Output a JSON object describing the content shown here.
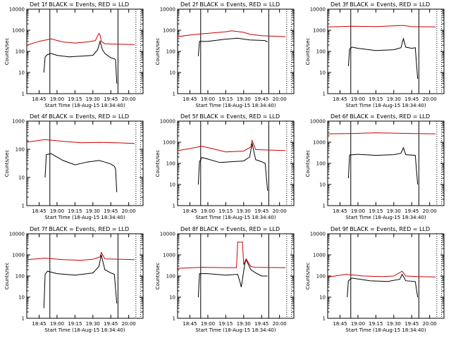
{
  "figure": {
    "background": "#ffffff"
  },
  "chart_data": [
    {
      "type": "line",
      "id": "1f",
      "title": "Det 1f BLACK = Events, RED = LLD",
      "xlabel": "Start Time (18-Aug-15 18:34:40)",
      "ylabel": "Counts/sec",
      "ylog": true,
      "ylim": [
        1,
        10000
      ],
      "yticks": [
        "1",
        "10",
        "100",
        "1000",
        "10000"
      ],
      "xticks": [
        "18:45",
        "19:00",
        "19:15",
        "19:30",
        "19:45",
        "20:00"
      ],
      "vlines_solid": [
        "18:54",
        "19:51"
      ],
      "vlines_dotted": [
        "20:06",
        "20:10"
      ],
      "series": [
        {
          "name": "Events",
          "color": "#000000",
          "x": [
            "18:49",
            "18:50",
            "18:52",
            "18:55",
            "19:00",
            "19:10",
            "19:20",
            "19:30",
            "19:34",
            "19:36",
            "19:38",
            "19:40",
            "19:45",
            "19:48",
            "19:49",
            "19:50"
          ],
          "y": [
            10,
            55,
            70,
            80,
            65,
            55,
            60,
            65,
            120,
            300,
            120,
            80,
            50,
            45,
            40,
            3
          ]
        },
        {
          "name": "LLD",
          "color": "#cc0000",
          "x": [
            "18:35",
            "18:45",
            "18:55",
            "19:05",
            "19:15",
            "19:25",
            "19:32",
            "19:35",
            "19:36",
            "19:37",
            "19:40",
            "19:50",
            "20:05"
          ],
          "y": [
            200,
            300,
            390,
            280,
            250,
            280,
            320,
            700,
            600,
            300,
            230,
            220,
            210
          ]
        }
      ]
    },
    {
      "type": "line",
      "id": "2f",
      "title": "Det 2f BLACK = Events, RED = LLD",
      "xlabel": "Start Time (18-Aug-15 18:34:40)",
      "ylabel": "Counts/sec",
      "ylog": true,
      "ylim": [
        1,
        10000
      ],
      "yticks": [
        "1",
        "10",
        "100",
        "1000",
        "10000"
      ],
      "xticks": [
        "18:45",
        "19:00",
        "19:15",
        "19:30",
        "19:45",
        "20:00"
      ],
      "vlines_solid": [
        "18:54",
        "19:51"
      ],
      "vlines_dotted": [
        "20:06",
        "20:10"
      ],
      "series": [
        {
          "name": "Events",
          "color": "#000000",
          "x": [
            "18:52",
            "18:53",
            "19:00",
            "19:15",
            "19:25",
            "19:35",
            "19:45",
            "19:48",
            "19:50"
          ],
          "y": [
            60,
            300,
            300,
            380,
            420,
            350,
            330,
            320,
            280
          ]
        },
        {
          "name": "LLD",
          "color": "#cc0000",
          "x": [
            "18:35",
            "18:45",
            "18:55",
            "19:05",
            "19:15",
            "19:20",
            "19:30",
            "19:35",
            "19:45",
            "20:05"
          ],
          "y": [
            500,
            600,
            680,
            760,
            850,
            950,
            800,
            650,
            550,
            500
          ]
        }
      ]
    },
    {
      "type": "line",
      "id": "3f",
      "title": "Det 3f BLACK = Events, RED = LLD",
      "xlabel": "Start Time (18-Aug-15 18:34:40)",
      "ylabel": "Counts/sec",
      "ylog": true,
      "ylim": [
        1,
        10000
      ],
      "yticks": [
        "1",
        "10",
        "100",
        "1000",
        "10000"
      ],
      "xticks": [
        "18:45",
        "19:00",
        "19:15",
        "19:30",
        "19:45",
        "20:00"
      ],
      "vlines_solid": [
        "18:54",
        "19:51"
      ],
      "vlines_dotted": [
        "20:06",
        "20:10"
      ],
      "series": [
        {
          "name": "Events",
          "color": "#000000",
          "x": [
            "18:52",
            "18:53",
            "18:55",
            "19:00",
            "19:15",
            "19:30",
            "19:36",
            "19:38",
            "19:40",
            "19:45",
            "19:48",
            "19:50"
          ],
          "y": [
            20,
            130,
            160,
            140,
            110,
            120,
            150,
            400,
            160,
            140,
            150,
            5
          ]
        },
        {
          "name": "LLD",
          "color": "#cc0000",
          "x": [
            "18:35",
            "18:55",
            "19:15",
            "19:38",
            "19:45",
            "20:05"
          ],
          "y": [
            1450,
            1550,
            1500,
            1700,
            1500,
            1450
          ]
        }
      ]
    },
    {
      "type": "line",
      "id": "4f",
      "title": "Det 4f BLACK = Events, RED = LLD",
      "xlabel": "Start Time (18-Aug-15 18:34:40)",
      "ylabel": "Counts/sec",
      "ylog": true,
      "ylim": [
        1,
        1000
      ],
      "yticks": [
        "1",
        "10",
        "100",
        "1000"
      ],
      "xticks": [
        "18:45",
        "19:00",
        "19:15",
        "19:30",
        "19:45",
        "20:00"
      ],
      "vlines_solid": [
        "18:54"
      ],
      "vlines_dotted": [
        "20:06",
        "20:10"
      ],
      "series": [
        {
          "name": "Events",
          "color": "#000000",
          "x": [
            "18:50",
            "18:51",
            "18:55",
            "19:05",
            "19:15",
            "19:25",
            "19:35",
            "19:40",
            "19:45",
            "19:48",
            "19:49",
            "19:50"
          ],
          "y": [
            10,
            65,
            70,
            40,
            28,
            35,
            40,
            35,
            30,
            25,
            20,
            3
          ]
        },
        {
          "name": "LLD",
          "color": "#cc0000",
          "x": [
            "18:35",
            "18:50",
            "19:05",
            "19:20",
            "19:35",
            "19:50",
            "20:05"
          ],
          "y": [
            180,
            220,
            190,
            170,
            175,
            170,
            160
          ]
        }
      ]
    },
    {
      "type": "line",
      "id": "5f",
      "title": "Det 5f BLACK = Events, RED = LLD",
      "xlabel": "Start Time (18-Aug-15 18:34:40)",
      "ylabel": "Counts/sec",
      "ylog": true,
      "ylim": [
        1,
        10000
      ],
      "yticks": [
        "1",
        "10",
        "100",
        "1000",
        "10000"
      ],
      "xticks": [
        "18:45",
        "19:00",
        "19:15",
        "19:30",
        "19:45",
        "20:00"
      ],
      "vlines_solid": [
        "18:54",
        "19:51"
      ],
      "vlines_dotted": [
        "20:06",
        "20:10"
      ],
      "series": [
        {
          "name": "Events",
          "color": "#000000",
          "x": [
            "18:52",
            "18:53",
            "18:55",
            "19:00",
            "19:10",
            "19:20",
            "19:30",
            "19:35",
            "19:37",
            "19:40",
            "19:45",
            "19:48",
            "19:50"
          ],
          "y": [
            10,
            120,
            190,
            160,
            110,
            120,
            130,
            200,
            900,
            150,
            120,
            100,
            5
          ]
        },
        {
          "name": "LLD",
          "color": "#cc0000",
          "x": [
            "18:35",
            "18:45",
            "18:55",
            "19:05",
            "19:15",
            "19:30",
            "19:36",
            "19:37",
            "19:40",
            "20:05"
          ],
          "y": [
            400,
            500,
            650,
            480,
            350,
            380,
            600,
            1200,
            450,
            400
          ]
        }
      ]
    },
    {
      "type": "line",
      "id": "6f",
      "title": "Det 6f BLACK = Events, RED = LLD",
      "xlabel": "Start Time (18-Aug-15 18:34:40)",
      "ylabel": "Counts/sec",
      "ylog": true,
      "ylim": [
        1,
        10000
      ],
      "yticks": [
        "1",
        "10",
        "100",
        "1000",
        "10000"
      ],
      "xticks": [
        "18:45",
        "19:00",
        "19:15",
        "19:30",
        "19:45",
        "20:00"
      ],
      "vlines_solid": [
        "18:54",
        "19:51"
      ],
      "vlines_dotted": [
        "20:06",
        "20:10"
      ],
      "series": [
        {
          "name": "Events",
          "color": "#000000",
          "x": [
            "18:52",
            "18:53",
            "19:00",
            "19:15",
            "19:30",
            "19:36",
            "19:38",
            "19:40",
            "19:48",
            "19:50"
          ],
          "y": [
            20,
            250,
            270,
            240,
            260,
            300,
            550,
            260,
            240,
            10
          ]
        },
        {
          "name": "LLD",
          "color": "#cc0000",
          "x": [
            "18:35",
            "18:55",
            "19:15",
            "19:30",
            "19:45",
            "20:05"
          ],
          "y": [
            2500,
            2600,
            2800,
            2700,
            2600,
            2500
          ]
        }
      ]
    },
    {
      "type": "line",
      "id": "7f",
      "title": "Det 7f BLACK = Events, RED = LLD",
      "xlabel": "Start Time (18-Aug-15 18:34:40)",
      "ylabel": "Counts/sec",
      "ylog": true,
      "ylim": [
        1,
        10000
      ],
      "yticks": [
        "1",
        "10",
        "100",
        "1000",
        "10000"
      ],
      "xticks": [
        "18:45",
        "19:00",
        "19:15",
        "19:30",
        "19:45",
        "20:00"
      ],
      "vlines_solid": [
        "18:54",
        "19:51"
      ],
      "vlines_dotted": [
        "20:06",
        "20:10"
      ],
      "series": [
        {
          "name": "Events",
          "color": "#000000",
          "x": [
            "18:49",
            "18:50",
            "18:52",
            "19:00",
            "19:15",
            "19:30",
            "19:35",
            "19:37",
            "19:40",
            "19:45",
            "19:48",
            "19:50"
          ],
          "y": [
            3,
            120,
            170,
            130,
            110,
            140,
            280,
            1000,
            200,
            140,
            120,
            5
          ]
        },
        {
          "name": "LLD",
          "color": "#cc0000",
          "x": [
            "18:35",
            "18:50",
            "19:05",
            "19:20",
            "19:30",
            "19:36",
            "19:37",
            "19:40",
            "20:05"
          ],
          "y": [
            600,
            700,
            600,
            560,
            620,
            800,
            1300,
            650,
            600
          ]
        }
      ]
    },
    {
      "type": "line",
      "id": "8f",
      "title": "Det 8f BLACK = Events, RED = LLD",
      "xlabel": "Start Time (18-Aug-15 18:34:40)",
      "ylabel": "Counts/sec",
      "ylog": true,
      "ylim": [
        1,
        10000
      ],
      "yticks": [
        "1",
        "10",
        "100",
        "1000",
        "10000"
      ],
      "xticks": [
        "18:45",
        "19:00",
        "19:15",
        "19:30",
        "19:45",
        "20:00"
      ],
      "vlines_solid": [
        "18:54",
        "19:51"
      ],
      "vlines_dotted": [
        "20:06",
        "20:10"
      ],
      "series": [
        {
          "name": "Events",
          "color": "#000000",
          "x": [
            "18:52",
            "18:53",
            "19:00",
            "19:15",
            "19:25",
            "19:27",
            "19:28",
            "19:31",
            "19:32",
            "19:36",
            "19:40",
            "19:45",
            "19:48",
            "19:50"
          ],
          "y": [
            10,
            130,
            130,
            110,
            120,
            50,
            30,
            400,
            600,
            200,
            140,
            100,
            100,
            100
          ]
        },
        {
          "name": "LLD",
          "color": "#cc0000",
          "x": [
            "18:35",
            "18:55",
            "19:15",
            "19:24",
            "19:25",
            "19:29",
            "19:30",
            "19:32",
            "19:36",
            "19:40",
            "20:05"
          ],
          "y": [
            230,
            260,
            250,
            250,
            4000,
            4000,
            350,
            650,
            280,
            260,
            250
          ]
        }
      ]
    },
    {
      "type": "line",
      "id": "9f",
      "title": "Det 9f BLACK = Events, RED = LLD",
      "xlabel": "Start Time (18-Aug-15 18:34:40)",
      "ylabel": "Counts/sec",
      "ylog": true,
      "ylim": [
        1,
        10000
      ],
      "yticks": [
        "1",
        "10",
        "100",
        "1000",
        "10000"
      ],
      "xticks": [
        "18:45",
        "19:00",
        "19:15",
        "19:30",
        "19:45",
        "20:00"
      ],
      "vlines_solid": [
        "18:54",
        "19:51"
      ],
      "vlines_dotted": [
        "20:06",
        "20:10"
      ],
      "series": [
        {
          "name": "Events",
          "color": "#000000",
          "x": [
            "18:51",
            "18:52",
            "18:55",
            "19:10",
            "19:25",
            "19:35",
            "19:37",
            "19:40",
            "19:48",
            "19:50"
          ],
          "y": [
            10,
            60,
            80,
            60,
            55,
            70,
            120,
            60,
            55,
            10
          ]
        },
        {
          "name": "LLD",
          "color": "#cc0000",
          "x": [
            "18:35",
            "18:50",
            "19:05",
            "19:20",
            "19:30",
            "19:37",
            "19:40",
            "19:50",
            "20:05"
          ],
          "y": [
            90,
            120,
            100,
            95,
            100,
            170,
            100,
            95,
            90
          ]
        }
      ]
    }
  ]
}
